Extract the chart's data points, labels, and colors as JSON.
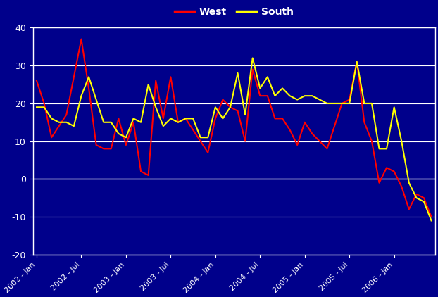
{
  "background_color": "#00008B",
  "plot_bg_color": "#00008B",
  "grid_color": "white",
  "tick_color": "white",
  "spine_color": "white",
  "ylim": [
    -20,
    40
  ],
  "yticks": [
    -20,
    -10,
    0,
    10,
    20,
    30,
    40
  ],
  "west_color": "#FF0000",
  "south_color": "#FFFF00",
  "west_label": "West",
  "south_label": "South",
  "x_labels": [
    "2002 - Jan",
    "2002 - Jul",
    "2003 - Jan",
    "2003 - Jul",
    "2004 - Jan",
    "2004 - Jul",
    "2005 - Jan",
    "2005 - Jul",
    "2006 - Jan"
  ],
  "x_tick_indices": [
    0,
    6,
    12,
    18,
    24,
    30,
    36,
    42,
    48
  ],
  "west": [
    26,
    20,
    11,
    14,
    17,
    27,
    37,
    24,
    9,
    8,
    8,
    16,
    9,
    15,
    2,
    1,
    26,
    16,
    27,
    15,
    16,
    13,
    10,
    7,
    16,
    21,
    19,
    18,
    10,
    29,
    22,
    22,
    16,
    16,
    13,
    9,
    15,
    12,
    10,
    8,
    14,
    20,
    21,
    31,
    15,
    10,
    -1,
    3,
    2,
    -2,
    -8,
    -4,
    -5,
    -10
  ],
  "south": [
    19,
    19,
    16,
    15,
    15,
    14,
    22,
    27,
    21,
    15,
    15,
    12,
    11,
    16,
    15,
    25,
    19,
    14,
    16,
    15,
    16,
    16,
    11,
    11,
    19,
    16,
    19,
    28,
    17,
    32,
    24,
    27,
    22,
    24,
    22,
    21,
    22,
    22,
    21,
    20,
    20,
    20,
    20,
    31,
    20,
    20,
    8,
    8,
    19,
    10,
    -1,
    -5,
    -6,
    -11
  ]
}
